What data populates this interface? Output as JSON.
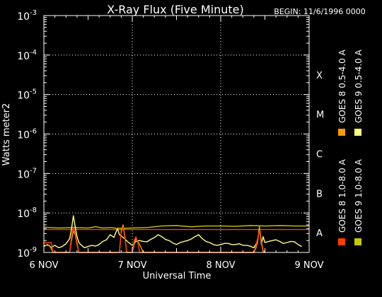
{
  "chart_data": {
    "type": "line",
    "title": "X-Ray Flux (Five Minute)",
    "begin_label": "BEGIN: 11/6/1996 0000",
    "xlabel": "Universal Time",
    "ylabel": "Watts meter2",
    "x_ticks": [
      {
        "t": 0,
        "label": "6 NOV"
      },
      {
        "t": 24,
        "label": "7 NOV"
      },
      {
        "t": 48,
        "label": "8 NOV"
      },
      {
        "t": 72,
        "label": "9 NOV"
      }
    ],
    "x_range_hours": [
      0,
      72
    ],
    "y_scale": "log",
    "y_range_exp": [
      -9,
      -3
    ],
    "y_ticks_exp": [
      -9,
      -8,
      -7,
      -6,
      -5,
      -4,
      -3
    ],
    "flare_classes": [
      {
        "label": "X",
        "exp": -4
      },
      {
        "label": "M",
        "exp": -5
      },
      {
        "label": "C",
        "exp": -6
      },
      {
        "label": "B",
        "exp": -7
      },
      {
        "label": "A",
        "exp": -8
      }
    ],
    "grid": {
      "vertical_dotted_at_hours": [
        24,
        48
      ],
      "horizontal_dotted_at_exp": [
        -8,
        -7,
        -6,
        -5,
        -4
      ]
    },
    "legend": [
      {
        "label": "GOES 8  1.0-8.0 A",
        "color": "#ff4000"
      },
      {
        "label": "GOES 9  1.0-8.0 A",
        "color": "#c8c800"
      },
      {
        "label": "GOES 8  0.5-4.0 A",
        "color": "#ff9900"
      },
      {
        "label": "GOES 9  0.5-4.0 A",
        "color": "#ffff80"
      }
    ],
    "series": [
      {
        "name": "GOES 8  1.0-8.0 A",
        "color": "#ff4000",
        "x": [
          0,
          72
        ],
        "log_y": [
          -8.42,
          -8.42
        ]
      },
      {
        "name": "GOES 9  1.0-8.0 A",
        "color": "#c8c800",
        "x": [
          0,
          4,
          8,
          12,
          14,
          16,
          18,
          20,
          24,
          28,
          32,
          36,
          40,
          44,
          48,
          52,
          56,
          60,
          64,
          68,
          72
        ],
        "log_y": [
          -8.36,
          -8.38,
          -8.37,
          -8.38,
          -8.35,
          -8.38,
          -8.37,
          -8.39,
          -8.38,
          -8.37,
          -8.33,
          -8.32,
          -8.35,
          -8.33,
          -8.33,
          -8.34,
          -8.32,
          -8.33,
          -8.32,
          -8.33,
          -8.33
        ]
      },
      {
        "name": "GOES 9  0.5-4.0 A",
        "color": "#ffff80",
        "x": [
          0,
          1,
          2,
          3,
          4,
          5,
          6,
          7,
          7.5,
          8,
          8.5,
          9,
          9.5,
          10,
          11,
          12,
          13,
          14,
          15,
          16,
          17,
          18,
          19,
          19.5,
          20,
          20.5,
          21,
          22,
          23,
          24,
          25,
          26,
          27,
          28,
          29,
          30,
          31,
          32,
          33,
          34,
          35,
          36,
          37,
          38,
          39,
          40,
          41,
          42,
          43,
          44,
          45,
          46,
          47,
          48,
          49,
          50,
          51,
          52,
          53,
          54,
          55,
          56,
          57,
          58,
          58.5,
          59,
          59.5,
          60,
          61,
          62,
          63,
          64,
          65,
          66,
          67,
          68,
          69,
          70
        ],
        "log_y": [
          -8.85,
          -8.8,
          -8.87,
          -8.82,
          -8.88,
          -8.85,
          -8.78,
          -8.65,
          -8.4,
          -8.07,
          -8.35,
          -8.6,
          -8.75,
          -8.8,
          -8.88,
          -8.85,
          -8.82,
          -8.84,
          -8.8,
          -8.72,
          -8.68,
          -8.55,
          -8.62,
          -8.5,
          -8.4,
          -8.55,
          -8.58,
          -8.66,
          -8.75,
          -8.82,
          -8.72,
          -8.7,
          -8.72,
          -8.73,
          -8.67,
          -8.62,
          -8.55,
          -8.6,
          -8.67,
          -8.7,
          -8.76,
          -8.8,
          -8.75,
          -8.72,
          -8.7,
          -8.66,
          -8.6,
          -8.55,
          -8.65,
          -8.72,
          -8.75,
          -8.8,
          -8.82,
          -8.8,
          -8.77,
          -8.77,
          -8.8,
          -8.8,
          -8.78,
          -8.82,
          -8.82,
          -8.84,
          -8.88,
          -8.72,
          -8.35,
          -8.8,
          -8.6,
          -8.75,
          -8.72,
          -8.7,
          -8.68,
          -8.72,
          -8.77,
          -8.75,
          -8.72,
          -8.73,
          -8.8,
          -8.85
        ]
      },
      {
        "name": "GOES 8  0.5-4.0 A",
        "color": "#ff9900",
        "x": [
          0,
          1.5,
          2,
          2.5,
          3,
          3.5,
          7,
          7.5,
          8,
          8.5,
          9,
          9.5,
          10,
          20.5,
          21,
          21.5,
          22,
          22.5,
          23,
          23.5,
          24,
          24.5,
          25,
          26,
          27,
          28,
          57,
          57.5,
          58,
          58.5,
          59,
          59.5,
          60
        ],
        "log_y": [
          -8.82,
          -8.82,
          -8.9,
          -9.0,
          -9.0,
          -9.0,
          -9.0,
          -8.7,
          -8.45,
          -8.55,
          -8.8,
          -9.0,
          -9.0,
          -9.0,
          -8.45,
          -8.3,
          -8.6,
          -9.0,
          -9.0,
          -9.0,
          -9.0,
          -8.8,
          -8.65,
          -8.8,
          -9.0,
          -9.0,
          -9.0,
          -8.9,
          -8.75,
          -8.35,
          -8.7,
          -8.95,
          -9.0
        ]
      },
      {
        "name": "GOES 8  1.0-8.0 A (event)",
        "color": "#ff4000",
        "x": [
          0,
          2,
          2.5,
          3,
          7,
          7.5,
          8,
          8.5,
          9,
          9.5,
          20.5,
          21,
          21.5,
          22,
          22.5,
          23,
          24,
          24.5,
          25,
          25.5,
          26,
          57,
          57.5,
          58,
          58.5,
          59,
          59.5,
          60
        ],
        "log_y": [
          -8.75,
          -8.75,
          -9.0,
          -9.0,
          -9.0,
          -8.6,
          -8.35,
          -8.5,
          -8.75,
          -9.0,
          -9.0,
          -8.5,
          -8.35,
          -8.65,
          -9.0,
          -9.0,
          -9.0,
          -8.7,
          -8.6,
          -8.75,
          -9.0,
          -9.0,
          -8.85,
          -8.65,
          -8.45,
          -8.75,
          -9.0,
          -9.0
        ]
      }
    ]
  }
}
